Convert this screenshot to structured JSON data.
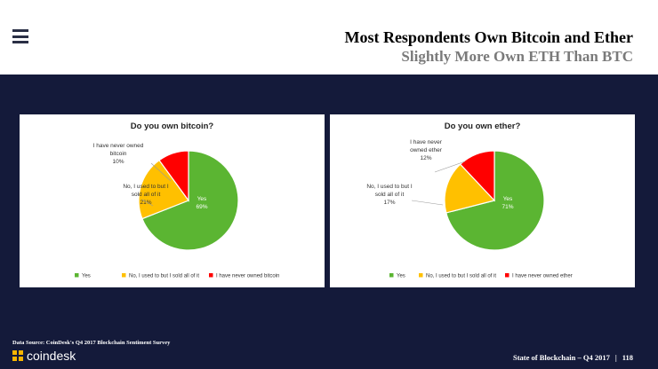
{
  "header": {
    "title": "Most Respondents Own Bitcoin and Ether",
    "subtitle": "Slightly More Own ETH Than BTC"
  },
  "footer": {
    "source": "Data Source: CoinDesk's Q4 2017 Blockchain Sentiment Survey",
    "brand": "coindesk",
    "report": "State of Blockchain – Q4 2017",
    "separator": "|",
    "page_number": "118"
  },
  "colors": {
    "yes": "#5bb532",
    "used_to": "#ffc000",
    "never": "#ff0000",
    "background": "#141a3a"
  },
  "chart_data": [
    {
      "type": "pie",
      "title": "Do you own bitcoin?",
      "slices": [
        {
          "label": "Yes",
          "value": 69,
          "label_lines": [
            "Yes",
            "69%"
          ],
          "color": "#5bb532"
        },
        {
          "label": "No, I used to but I sold all of it",
          "value": 21,
          "label_lines": [
            "No, I used to but I",
            "sold all of it",
            "21%"
          ],
          "color": "#ffc000"
        },
        {
          "label": "I have never owned bitcoin",
          "value": 10,
          "label_lines": [
            "I have never owned",
            "bitcoin",
            "10%"
          ],
          "color": "#ff0000"
        }
      ],
      "legend": [
        "Yes",
        "No, I used to but I sold all of it",
        "I have never owned bitcoin"
      ],
      "legend_position": "bottom"
    },
    {
      "type": "pie",
      "title": "Do you own ether?",
      "slices": [
        {
          "label": "Yes",
          "value": 71,
          "label_lines": [
            "Yes",
            "71%"
          ],
          "color": "#5bb532"
        },
        {
          "label": "No, I used to but I sold all of it",
          "value": 17,
          "label_lines": [
            "No, I used to but I",
            "sold all of it",
            "17%"
          ],
          "color": "#ffc000"
        },
        {
          "label": "I have never owned ether",
          "value": 12,
          "label_lines": [
            "I have never",
            "owned ether",
            "12%"
          ],
          "color": "#ff0000"
        }
      ],
      "legend": [
        "Yes",
        "No, I used to but I sold all of it",
        "I have never owned ether"
      ],
      "legend_position": "bottom"
    }
  ]
}
